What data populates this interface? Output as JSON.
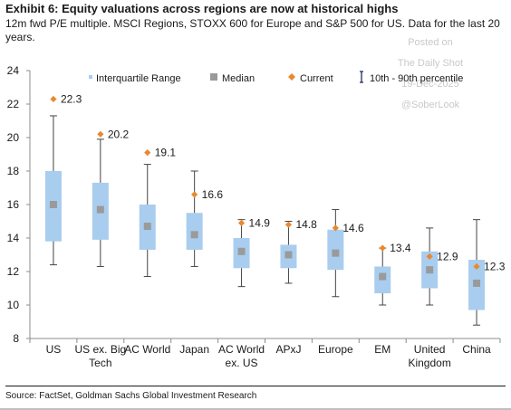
{
  "header": {
    "title": "Exhibit 6: Equity valuations across regions are now at historical highs",
    "subtitle": "12m fwd P/E multiple. MSCI Regions, STOXX 600 for Europe and S&P 500 for US. Data for the last 20 years."
  },
  "watermark": {
    "line1": "Posted on",
    "line2": "The Daily Shot",
    "line3": "19-Dec-2025",
    "line4": "@SoberLook"
  },
  "footer": {
    "source": "Source: FactSet, Goldman Sachs Global Investment Research"
  },
  "colors": {
    "iqr": "#a9cdee",
    "median": "#9a9a9a",
    "current": "#e8892f",
    "whisker": "#444444",
    "legend_whisker": "#1f2a6b"
  },
  "chart_data": {
    "type": "box",
    "ylim": [
      8,
      24
    ],
    "yticks": [
      8,
      10,
      12,
      14,
      16,
      18,
      20,
      22,
      24
    ],
    "grid": false,
    "legend_position": "top",
    "legend": {
      "iqr": "Interquartile Range",
      "median": "Median",
      "current": "Current",
      "range": "10th - 90th percentile"
    },
    "categories": [
      {
        "label": [
          "US"
        ],
        "p10": 12.4,
        "q1": 13.8,
        "median": 16.0,
        "q3": 18.0,
        "p90": 21.3,
        "current": 22.3,
        "current_label": "22.3"
      },
      {
        "label": [
          "US ex. Big",
          "Tech"
        ],
        "p10": 12.3,
        "q1": 13.9,
        "median": 15.7,
        "q3": 17.3,
        "p90": 19.9,
        "current": 20.2,
        "current_label": "20.2"
      },
      {
        "label": [
          "AC World"
        ],
        "p10": 11.7,
        "q1": 13.3,
        "median": 14.7,
        "q3": 16.0,
        "p90": 18.4,
        "current": 19.1,
        "current_label": "19.1"
      },
      {
        "label": [
          "Japan"
        ],
        "p10": 12.3,
        "q1": 13.3,
        "median": 14.2,
        "q3": 15.5,
        "p90": 18.0,
        "current": 16.6,
        "current_label": "16.6"
      },
      {
        "label": [
          "AC World",
          "ex. US"
        ],
        "p10": 11.1,
        "q1": 12.2,
        "median": 13.2,
        "q3": 14.0,
        "p90": 15.1,
        "current": 14.9,
        "current_label": "14.9"
      },
      {
        "label": [
          "APxJ"
        ],
        "p10": 11.3,
        "q1": 12.2,
        "median": 13.0,
        "q3": 13.6,
        "p90": 15.0,
        "current": 14.8,
        "current_label": "14.8"
      },
      {
        "label": [
          "Europe"
        ],
        "p10": 10.5,
        "q1": 12.1,
        "median": 13.1,
        "q3": 14.5,
        "p90": 15.7,
        "current": 14.6,
        "current_label": "14.6"
      },
      {
        "label": [
          "EM"
        ],
        "p10": 10.0,
        "q1": 10.7,
        "median": 11.7,
        "q3": 12.3,
        "p90": 13.4,
        "current": 13.4,
        "current_label": "13.4"
      },
      {
        "label": [
          "United",
          "Kingdom"
        ],
        "p10": 10.0,
        "q1": 11.0,
        "median": 12.1,
        "q3": 13.2,
        "p90": 14.6,
        "current": 12.9,
        "current_label": "12.9"
      },
      {
        "label": [
          "China"
        ],
        "p10": 8.8,
        "q1": 9.7,
        "median": 11.3,
        "q3": 12.7,
        "p90": 15.1,
        "current": 12.3,
        "current_label": "12.3"
      }
    ]
  }
}
